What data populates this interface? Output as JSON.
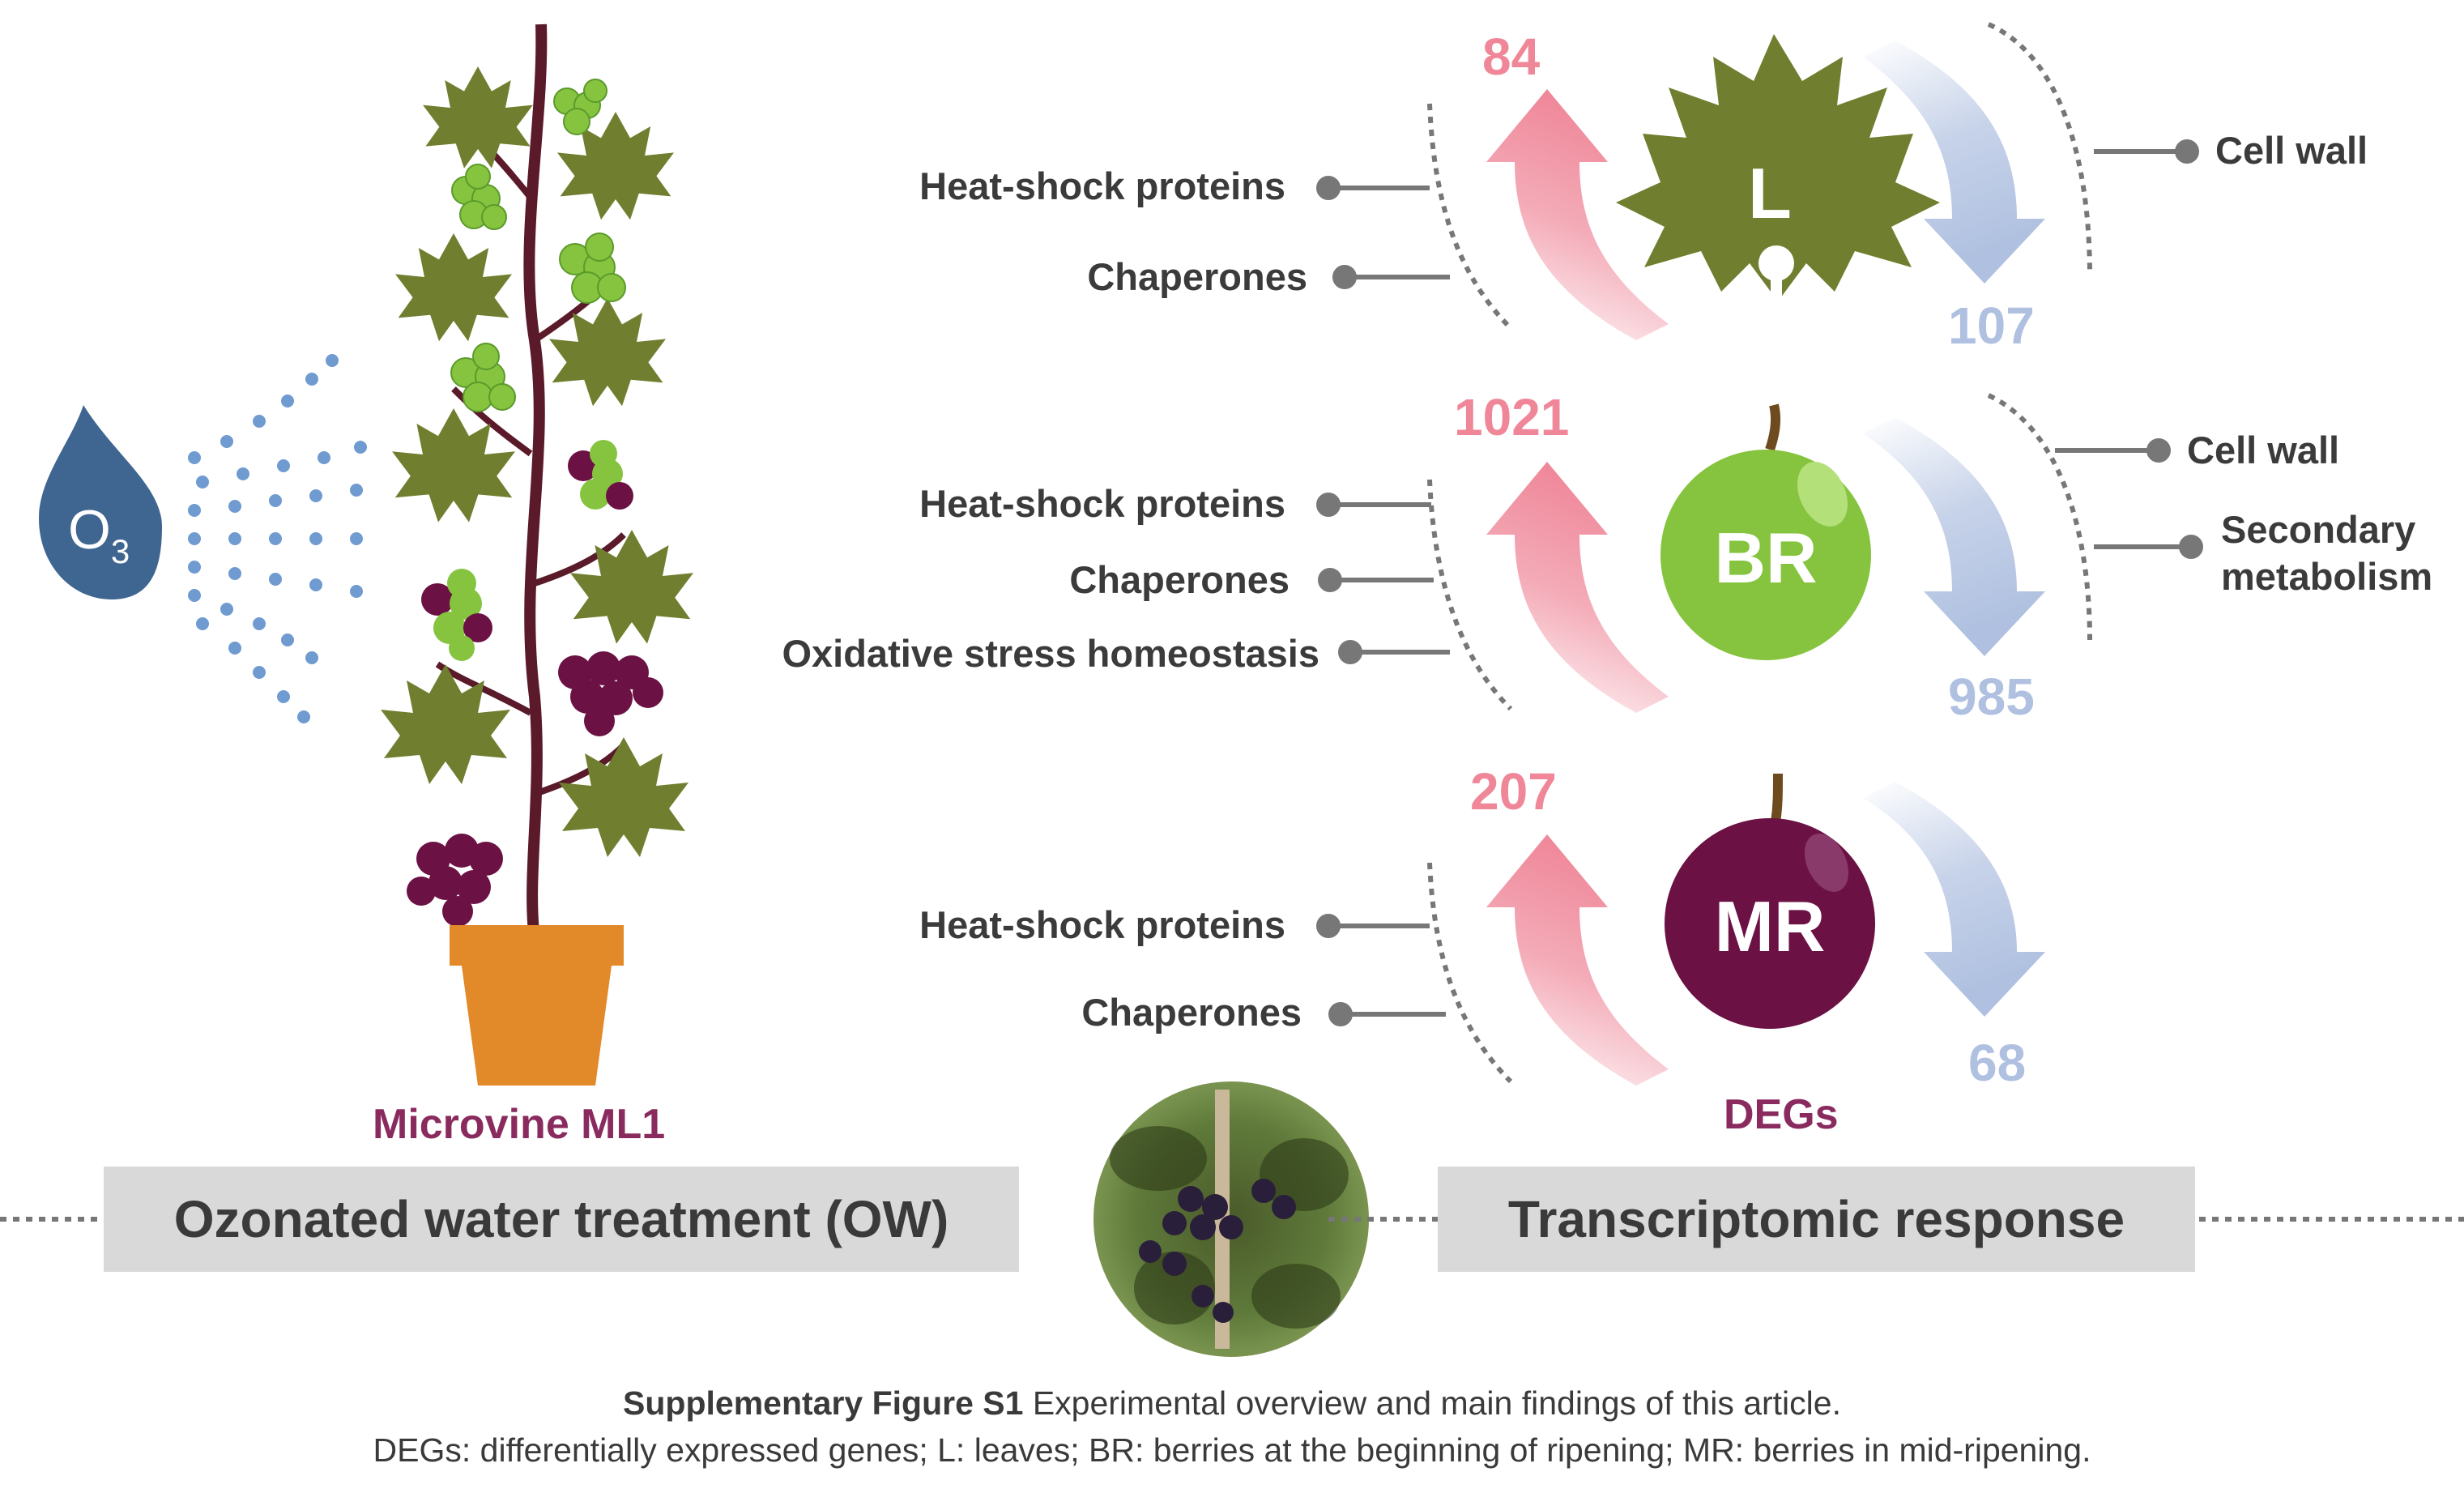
{
  "treatment": {
    "ozone_symbol": "O",
    "ozone_subscript": "3",
    "plant_label": "Microvine ML1",
    "banner_left": "Ozonated water treatment (OW)",
    "banner_right": "Transcriptomic response"
  },
  "degs_label": "DEGs",
  "organs": [
    {
      "code": "L",
      "up": "84",
      "down": "107",
      "up_categories": [
        "Heat-shock proteins",
        "Chaperones"
      ],
      "down_categories": [
        "Cell wall"
      ]
    },
    {
      "code": "BR",
      "up": "1021",
      "down": "985",
      "up_categories": [
        "Heat-shock proteins",
        "Chaperones",
        "Oxidative stress homeostasis"
      ],
      "down_categories": [
        "Cell wall",
        "Secondary metabolism"
      ]
    },
    {
      "code": "MR",
      "up": "207",
      "down": "68",
      "up_categories": [
        "Heat-shock proteins",
        "Chaperones"
      ],
      "down_categories": []
    }
  ],
  "caption": {
    "title": "Supplementary Figure S1",
    "title_rest": " Experimental overview and main findings of this article.",
    "line2": "DEGs: differentially expressed genes; L: leaves; BR: berries at the beginning of ripening; MR: berries in mid-ripening."
  },
  "colors": {
    "up_arrow": "#ef8799",
    "down_arrow": "#afc0e0",
    "leaf": "#6f7f2f",
    "green_berry": "#86c440",
    "purple_berry": "#6b1144",
    "pot": "#e2892a",
    "drop": "#3f6591",
    "label_purple": "#8a2b5f",
    "banner": "#d9d9d9"
  }
}
